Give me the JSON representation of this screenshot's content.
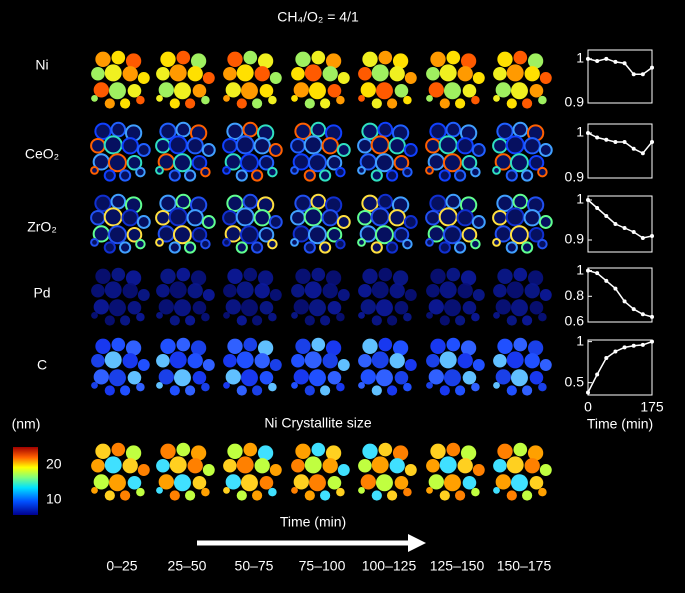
{
  "title": "CH₄/O₂ = 4/1",
  "rows": [
    "Ni",
    "CeO₂",
    "ZrO₂",
    "Pd",
    "C"
  ],
  "crystallite_title": "Ni Crystallite size",
  "colorbar": {
    "unit": "(nm)",
    "ticks": [
      20,
      10
    ]
  },
  "time_label": "Time (min)",
  "time_ranges": [
    "0–25",
    "25–50",
    "50–75",
    "75–100",
    "100–125",
    "125–150",
    "150–175"
  ],
  "chart_data": [
    {
      "type": "line",
      "x": [
        0,
        25,
        50,
        75,
        100,
        125,
        150,
        175
      ],
      "xlim": [
        0,
        175
      ],
      "ylim": [
        0.9,
        1.02
      ],
      "yticks": [
        1,
        0.9
      ],
      "color": "#ffffff",
      "values": [
        1.0,
        0.995,
        1.0,
        0.993,
        0.99,
        0.965,
        0.965,
        0.98
      ]
    },
    {
      "type": "line",
      "x": [
        0,
        25,
        50,
        75,
        100,
        125,
        150,
        175
      ],
      "xlim": [
        0,
        175
      ],
      "ylim": [
        0.9,
        1.02
      ],
      "yticks": [
        1,
        0.9
      ],
      "color": "#ffffff",
      "values": [
        1.0,
        0.99,
        0.985,
        0.98,
        0.98,
        0.965,
        0.955,
        0.98
      ]
    },
    {
      "type": "line",
      "x": [
        0,
        25,
        50,
        75,
        100,
        125,
        150,
        175
      ],
      "xlim": [
        0,
        175
      ],
      "ylim": [
        0.87,
        1.01
      ],
      "yticks": [
        1,
        0.9
      ],
      "color": "#ffffff",
      "values": [
        1.0,
        0.98,
        0.96,
        0.94,
        0.93,
        0.92,
        0.905,
        0.91
      ]
    },
    {
      "type": "line",
      "x": [
        0,
        25,
        50,
        75,
        100,
        125,
        150,
        175
      ],
      "xlim": [
        0,
        175
      ],
      "ylim": [
        0.6,
        1.02
      ],
      "yticks": [
        1,
        0.8,
        0.6
      ],
      "color": "#ffffff",
      "values": [
        1.0,
        0.98,
        0.92,
        0.86,
        0.76,
        0.7,
        0.66,
        0.64
      ]
    },
    {
      "type": "line",
      "x": [
        0,
        25,
        50,
        75,
        100,
        125,
        150,
        175
      ],
      "xlim": [
        0,
        175
      ],
      "ylim": [
        0.35,
        1.02
      ],
      "yticks": [
        1,
        0.5
      ],
      "xticks": [
        0,
        175
      ],
      "xlabel": "Time (min)",
      "color": "#ffffff",
      "values": [
        0.38,
        0.6,
        0.8,
        0.88,
        0.93,
        0.95,
        0.96,
        1.0
      ]
    }
  ]
}
